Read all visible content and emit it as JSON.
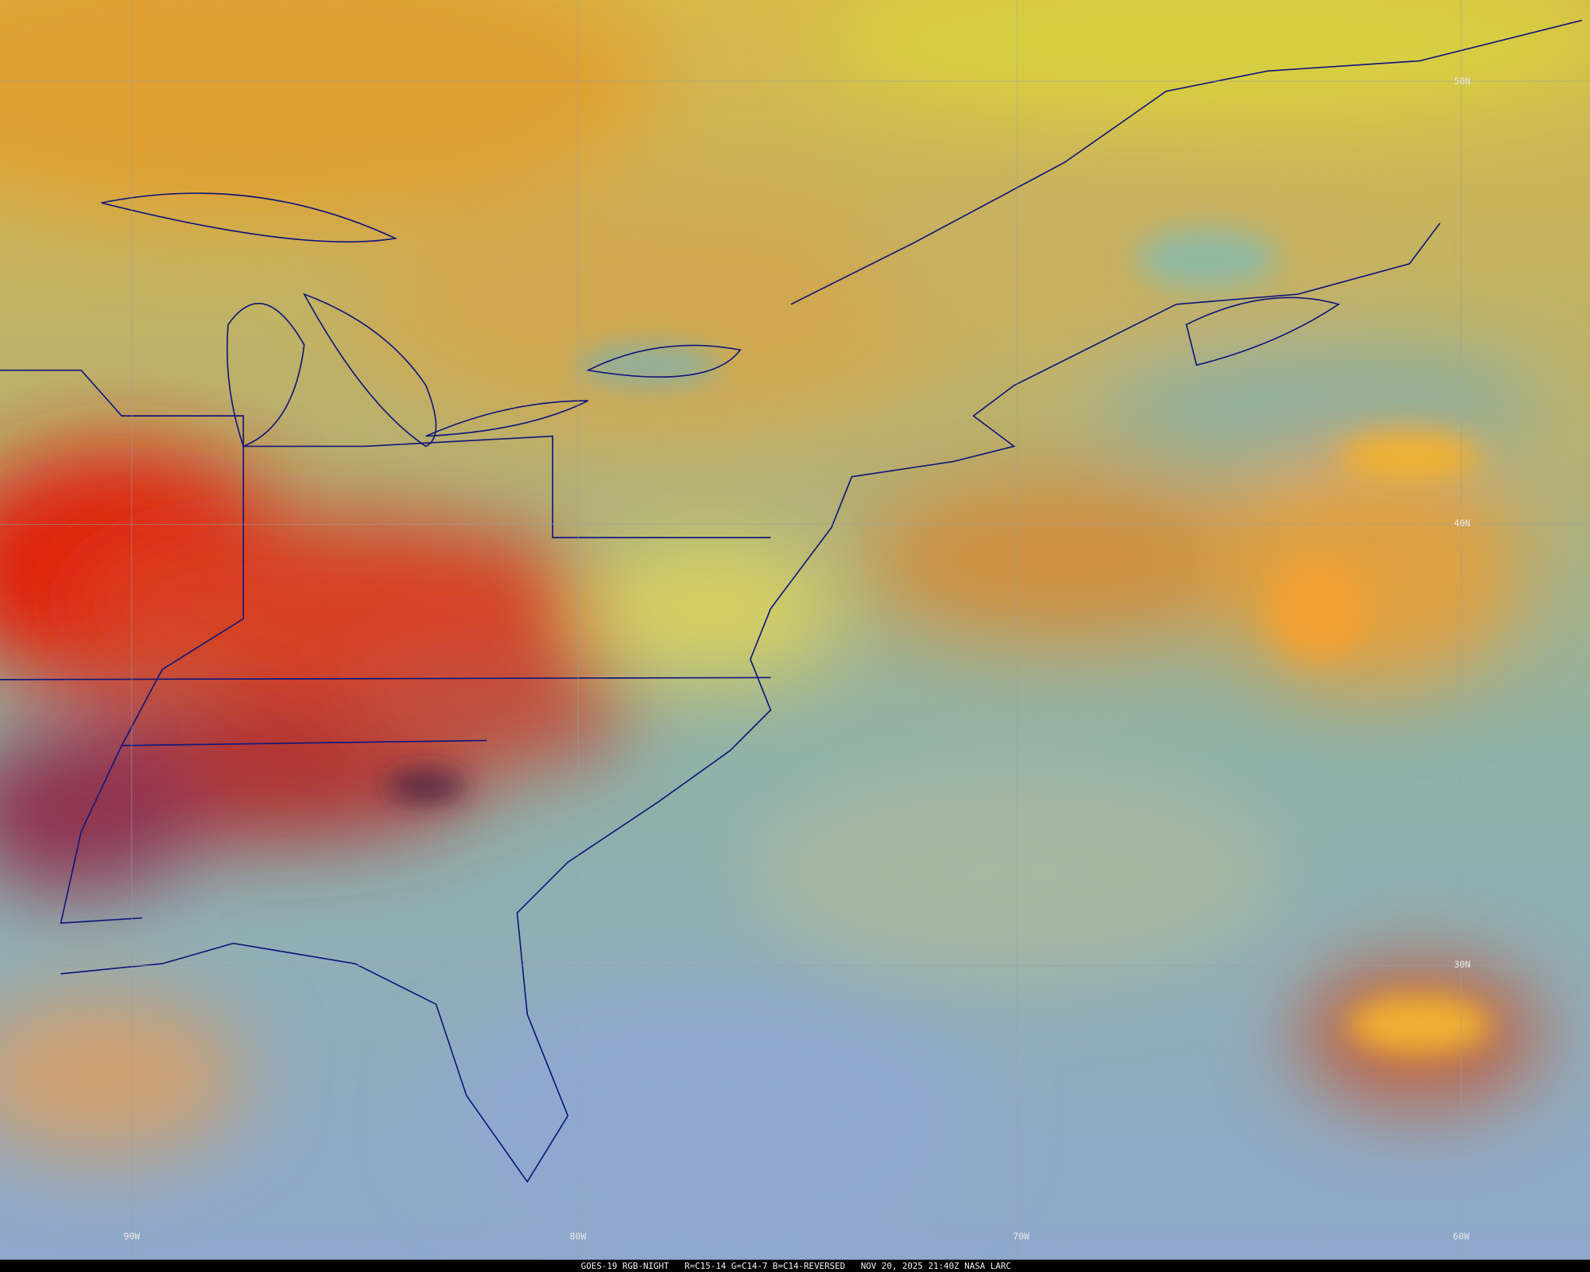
{
  "grid": {
    "latitude_labels": [
      "50N",
      "40N",
      "30N"
    ],
    "longitude_labels": [
      "90W",
      "80W",
      "70W",
      "60W"
    ]
  },
  "footer": "GOES-19 RGB-NIGHT   R=C15-14 G=C14-7 B=C14-REVERSED   NOV 20, 2025 21:40Z NASA LARC"
}
